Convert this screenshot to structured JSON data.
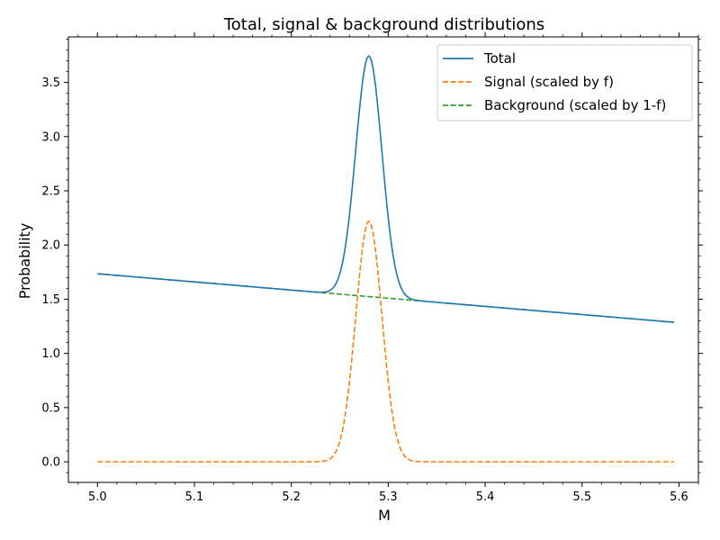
{
  "chart_data": {
    "type": "line",
    "title": "Total, signal & background distributions",
    "xlabel": "M",
    "ylabel": "Probability",
    "xlim": [
      4.97,
      5.62
    ],
    "ylim": [
      -0.19,
      3.92
    ],
    "xticks": [
      5.0,
      5.1,
      5.2,
      5.3,
      5.4,
      5.5,
      5.6
    ],
    "xtick_labels": [
      "5.0",
      "5.1",
      "5.2",
      "5.3",
      "5.4",
      "5.5",
      "5.6"
    ],
    "yticks": [
      0.0,
      0.5,
      1.0,
      1.5,
      2.0,
      2.5,
      3.0,
      3.5
    ],
    "ytick_labels": [
      "0.0",
      "0.5",
      "1.0",
      "1.5",
      "2.0",
      "2.5",
      "3.0",
      "3.5"
    ],
    "grid": false,
    "minor_ticks": true,
    "legend_position": "top-right",
    "model": {
      "x_start": 5.0,
      "x_end": 5.595,
      "signal_mean": 5.28,
      "signal_sigma": 0.0135,
      "signal_peak": 2.22,
      "background_at_start": 1.735,
      "background_at_end": 1.287
    },
    "series": [
      {
        "name": "Total",
        "color": "#1f77b4",
        "linestyle": "solid",
        "x": [
          5.0,
          5.1,
          5.2,
          5.22,
          5.24,
          5.25,
          5.26,
          5.27,
          5.28,
          5.29,
          5.3,
          5.31,
          5.32,
          5.34,
          5.4,
          5.5,
          5.595
        ],
        "y": [
          1.735,
          1.66,
          1.585,
          1.575,
          1.72,
          1.96,
          2.66,
          3.37,
          3.72,
          3.37,
          2.67,
          1.97,
          1.67,
          1.47,
          1.43,
          1.36,
          1.287
        ]
      },
      {
        "name": "Signal (scaled by f)",
        "color": "#ff7f0e",
        "linestyle": "dashed",
        "x": [
          5.0,
          5.2,
          5.22,
          5.24,
          5.25,
          5.26,
          5.27,
          5.28,
          5.29,
          5.3,
          5.31,
          5.32,
          5.34,
          5.4,
          5.595
        ],
        "y": [
          0.0,
          0.0,
          0.01,
          0.14,
          0.4,
          1.11,
          1.69,
          2.22,
          1.69,
          1.11,
          0.4,
          0.14,
          0.01,
          0.0,
          0.0
        ]
      },
      {
        "name": "Background (scaled by 1-f)",
        "color": "#2ca02c",
        "linestyle": "dashed",
        "x": [
          5.0,
          5.1,
          5.2,
          5.3,
          5.4,
          5.5,
          5.595
        ],
        "y": [
          1.735,
          1.66,
          1.585,
          1.51,
          1.435,
          1.36,
          1.287
        ]
      }
    ]
  }
}
